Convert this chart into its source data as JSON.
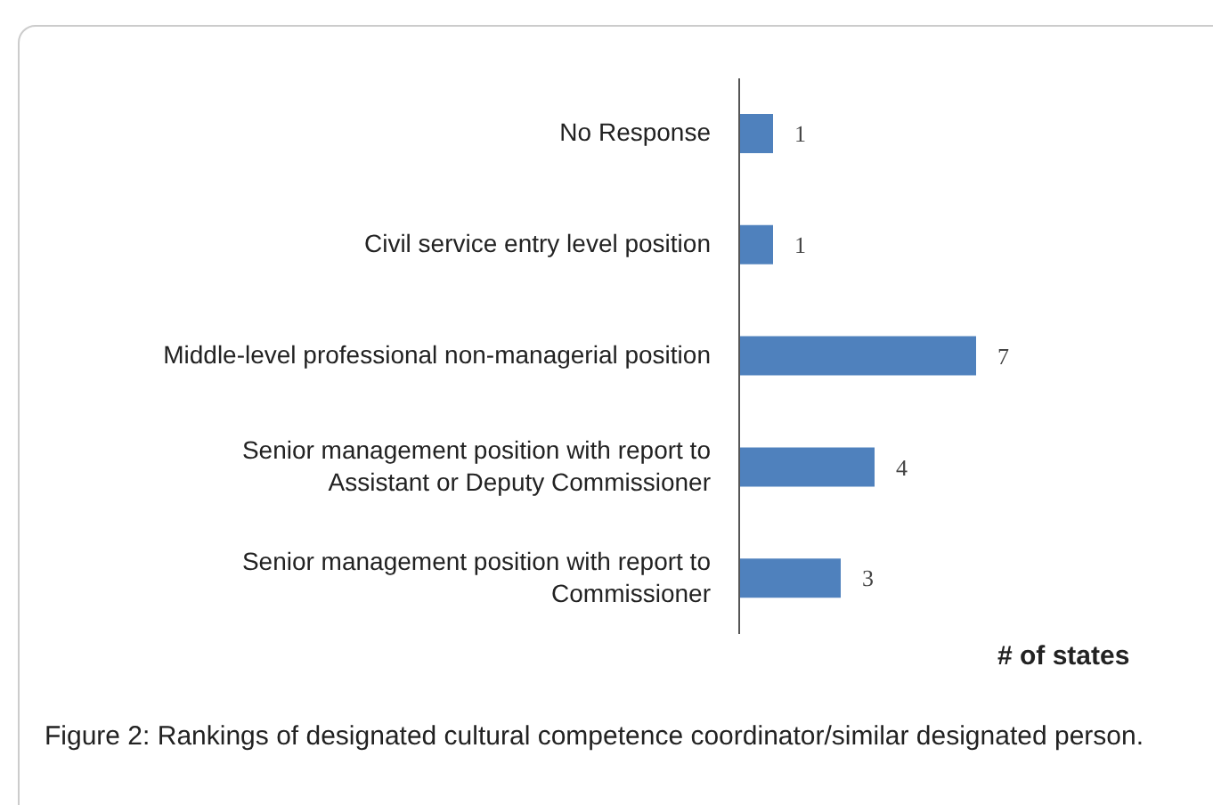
{
  "chart_data": {
    "type": "bar",
    "orientation": "horizontal",
    "categories": [
      "No Response",
      "Civil service entry level position",
      "Middle-level professional non-managerial position",
      "Senior management position with report to\nAssistant or Deputy Commissioner",
      "Senior management position with report to\nCommissioner"
    ],
    "values": [
      1,
      1,
      7,
      4,
      3
    ],
    "color": "#4f81bd",
    "data_labels": true,
    "xlabel": "# of states",
    "annotations": [
      "Figure 2: Rankings of designated cultural competence coordinator/similar designated person."
    ]
  }
}
